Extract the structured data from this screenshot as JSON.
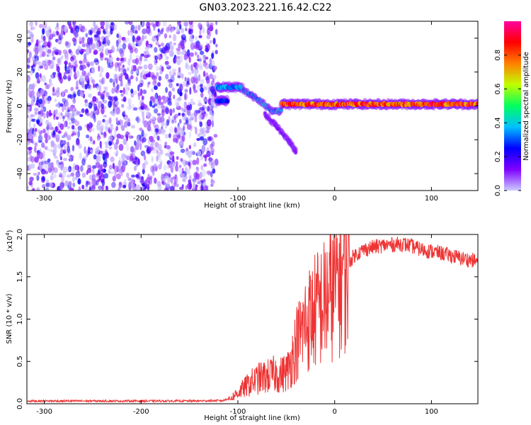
{
  "figure_title": "GN03.2023.221.16.42.C22",
  "chart_data": [
    {
      "type": "heatmap",
      "title": "GN03.2023.221.16.42.C22",
      "xlabel": "Height of straight line (km)",
      "ylabel": "Frequency (Hz)",
      "xlim": [
        -318,
        148
      ],
      "ylim": [
        -50,
        50
      ],
      "xticks": [
        -300,
        -200,
        -100,
        0,
        100
      ],
      "yticks": [
        -40,
        -20,
        0,
        20,
        40
      ],
      "colorbar": {
        "label": "Normalized spectral amplitude",
        "range": [
          0,
          1
        ],
        "ticks": [
          "0.0",
          "0.2",
          "0.4",
          "0.6",
          "0.8"
        ],
        "colormap": [
          "#ccccff",
          "#7f00ff",
          "#0000ff",
          "#00c0ff",
          "#00ff60",
          "#c0ff00",
          "#ff8000",
          "#ff0000",
          "#ff00a0"
        ]
      },
      "regions": [
        {
          "kind": "noise",
          "x_range": [
            -318,
            -122
          ],
          "freq_range": [
            -50,
            50
          ],
          "amplitude_range": [
            0.0,
            0.25
          ]
        },
        {
          "kind": "ridge",
          "x_range": [
            -122,
            -95
          ],
          "freq": 11,
          "amplitude": 0.4
        },
        {
          "kind": "ridge",
          "x_range": [
            -122,
            -110
          ],
          "freq": 3,
          "amplitude": 0.3
        },
        {
          "kind": "descending_ridge",
          "x": [
            -95,
            -85,
            -75,
            -65,
            -55
          ],
          "freq": [
            9,
            6,
            2,
            -3,
            -3
          ],
          "amplitude": 0.45
        },
        {
          "kind": "tail",
          "x": [
            -72,
            -60,
            -48,
            -40
          ],
          "freq": [
            -5,
            -12,
            -20,
            -27
          ],
          "amplitude": 0.15
        },
        {
          "kind": "ridge",
          "x_range": [
            -55,
            148
          ],
          "freq": 1,
          "amplitude": 0.95
        }
      ]
    },
    {
      "type": "line",
      "xlabel": "Height of straight line (km)",
      "ylabel": "SNR (10 * v/v)",
      "y_multiplier": "(x10",
      "y_multiplier_exp": "4",
      "xlim": [
        -318,
        148
      ],
      "ylim": [
        0,
        20000
      ],
      "xticks": [
        -300,
        -200,
        -100,
        0,
        100
      ],
      "yticks": [
        "0.0",
        "0.5",
        "1.0",
        "1.5",
        "2.0"
      ],
      "series": [
        {
          "color": "#ee3333",
          "x": [
            -318,
            -250,
            -200,
            -150,
            -115,
            -108,
            -100,
            -92,
            -85,
            -78,
            -70,
            -62,
            -55,
            -48,
            -40,
            -30,
            -20,
            -10,
            0,
            10,
            20,
            30,
            40,
            50,
            60,
            70,
            80,
            90,
            100,
            110,
            120,
            130,
            140,
            148
          ],
          "y": [
            200,
            200,
            200,
            200,
            250,
            600,
            1300,
            2000,
            2600,
            3000,
            3200,
            3500,
            3400,
            4000,
            7000,
            9500,
            11000,
            12000,
            14000,
            16000,
            17500,
            18200,
            18500,
            18700,
            18800,
            18900,
            18600,
            18200,
            18000,
            17800,
            17500,
            17200,
            17000,
            16800
          ]
        }
      ]
    }
  ]
}
